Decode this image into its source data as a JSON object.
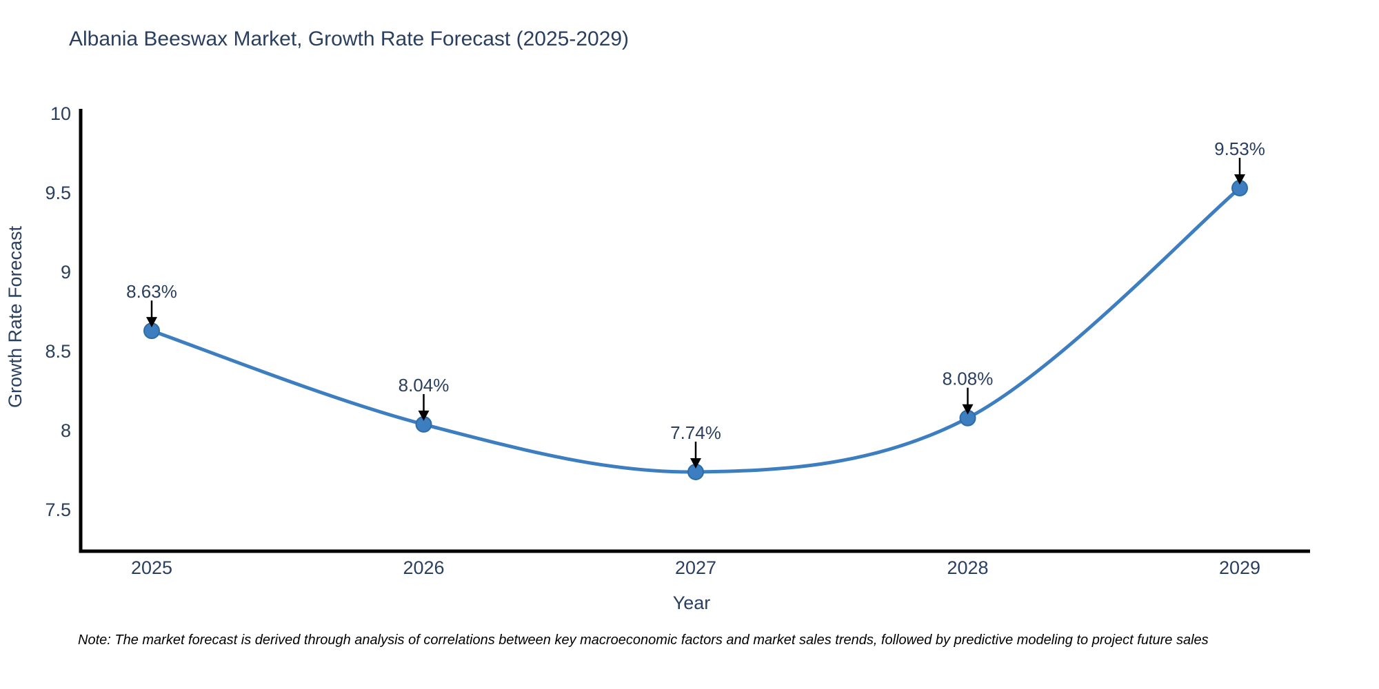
{
  "title": "Albania Beeswax Market, Growth Rate Forecast (2025-2029)",
  "footnote": "Note: The market forecast is derived through analysis of correlations between key macroeconomic factors and market sales trends, followed by predictive modeling to project future sales",
  "chart_data": {
    "type": "line",
    "title": "Albania Beeswax Market, Growth Rate Forecast (2025-2029)",
    "xlabel": "Year",
    "ylabel": "Growth Rate Forecast",
    "categories": [
      "2025",
      "2026",
      "2027",
      "2028",
      "2029"
    ],
    "values": [
      8.63,
      8.04,
      7.74,
      8.08,
      9.53
    ],
    "point_labels": [
      "8.63%",
      "8.04%",
      "7.74%",
      "8.08%",
      "9.53%"
    ],
    "yticks": [
      7.5,
      8,
      8.5,
      9,
      9.5,
      10
    ],
    "ylim": [
      7.24,
      10.03
    ],
    "grid": false,
    "legend": "none",
    "line_style": "spline",
    "colors": {
      "line": "#3c7ebf",
      "marker": "#3c7ebf",
      "marker_edge": "#2e6ca6",
      "axis_line": "#000000",
      "tick_text": "#2a3f5f",
      "annotation_text": "#2a3f5f",
      "annotation_arrow": "#000000"
    }
  }
}
